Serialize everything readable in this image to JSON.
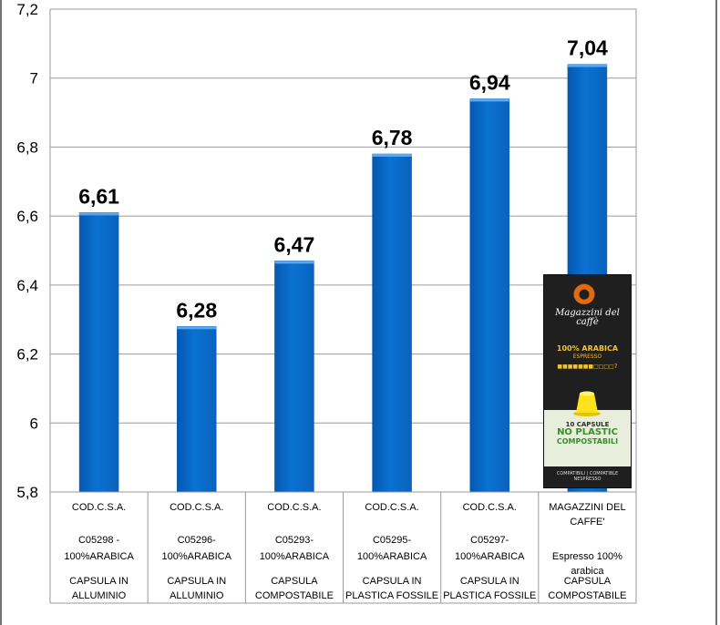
{
  "chart_data": {
    "type": "bar",
    "title": "",
    "xlabel": "",
    "ylabel": "",
    "ylim": [
      5.8,
      7.2
    ],
    "yticks": [
      "5,8",
      "6",
      "6,2",
      "6,4",
      "6,6",
      "6,8",
      "7",
      "7,2"
    ],
    "ytick_values": [
      5.8,
      6.0,
      6.2,
      6.4,
      6.6,
      6.8,
      7.0,
      7.2
    ],
    "grid": true,
    "legend": "none",
    "bar_color": "#0a72d2",
    "values": [
      6.61,
      6.28,
      6.47,
      6.78,
      6.94,
      7.04
    ],
    "value_labels": [
      "6,61",
      "6,28",
      "6,47",
      "6,78",
      "6,94",
      "7,04"
    ],
    "categories": [
      [
        "COD.C.S.A.",
        "",
        "C05298 -",
        "100%ARABICA",
        "",
        "CAPSULA IN",
        "ALLUMINIO"
      ],
      [
        "COD.C.S.A.",
        "",
        "C05296-",
        "100%ARABICA",
        "",
        "CAPSULA IN",
        "ALLUMINIO"
      ],
      [
        "COD.C.S.A.",
        "",
        "C05293-",
        "100%ARABICA",
        "",
        "CAPSULA",
        "COMPOSTABILE"
      ],
      [
        "COD.C.S.A.",
        "",
        "C05295-",
        "100%ARABICA",
        "",
        "CAPSULA IN",
        "PLASTICA FOSSILE"
      ],
      [
        "COD.C.S.A.",
        "",
        "C05297-",
        "100%ARABICA",
        "",
        "CAPSULA IN",
        "PLASTICA FOSSILE"
      ],
      [
        "MAGAZZINI DEL",
        "CAFFE'",
        "",
        "Espresso 100%",
        "arabica",
        "CAPSULA",
        "COMPOSTABILE"
      ]
    ]
  },
  "product_image": {
    "brand": "Magazzini del caffè",
    "arabica": "100% ARABICA",
    "espresso": "ESPRESSO",
    "intensity": "■■■■■■■□□□□7",
    "capsule_count": "10 CAPSULE",
    "no_plastic": "NO PLASTIC",
    "compostable": "COMPOSTABILI",
    "footer": "COMPATIBILI | COMPATIBLE NESPRESSO"
  }
}
